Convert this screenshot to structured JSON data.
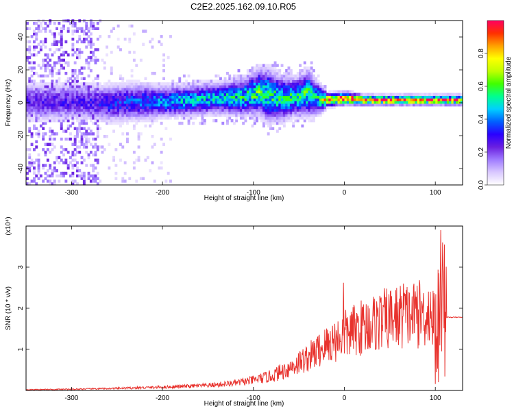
{
  "page": {
    "title": "C2E2.2025.162.09.10.R05"
  },
  "colors": {
    "snr_line": "#e8322d",
    "spectrum_dark": "#6a1fe0",
    "spectrum_ridge_high": "#ff2050",
    "spectrum_ridge_mid": "#30d080"
  },
  "chart_data": [
    {
      "type": "heatmap",
      "title": "C2E2.2025.162.09.10.R05",
      "xlabel": "Height of straight line (km)",
      "ylabel": "Frequency (Hz)",
      "xlim": [
        -350,
        130
      ],
      "ylim": [
        -50,
        50
      ],
      "x_ticks": [
        -300,
        -200,
        -100,
        0,
        100
      ],
      "x_tick_labels": [
        "-300",
        "-200",
        "-100",
        "0",
        "100"
      ],
      "y_ticks": [
        -40,
        -20,
        0,
        20,
        40
      ],
      "y_tick_labels": [
        "-40",
        "-20",
        "0",
        "20",
        "40"
      ],
      "colorbar": {
        "label": "Normalized spectral amplitude",
        "range": [
          0,
          1
        ],
        "ticks": [
          0.0,
          0.2,
          0.4,
          0.6,
          0.8
        ],
        "tick_labels": [
          "0.0",
          "0.2",
          "0.4",
          "0.6",
          "0.8"
        ],
        "colormap": [
          "#ffffff",
          "#d9c8ff",
          "#a07cff",
          "#6a1fe0",
          "#2a00ff",
          "#0060ff",
          "#00d0ff",
          "#00ff90",
          "#40ff00",
          "#c0ff00",
          "#ffff00",
          "#ffa000",
          "#ff3000",
          "#ff0060"
        ]
      },
      "ridge": {
        "x": [
          -290,
          -260,
          -230,
          -200,
          -170,
          -140,
          -110,
          -95,
          -85,
          -70,
          -55,
          -40,
          -30,
          -20,
          0,
          20,
          50,
          80,
          100,
          130
        ],
        "frequency": [
          0,
          -1,
          0,
          0,
          1,
          2,
          3,
          6,
          4,
          2,
          3,
          5,
          2,
          1,
          2,
          1,
          1,
          1,
          1,
          1
        ],
        "spread": [
          6,
          6,
          6,
          5,
          5,
          5,
          6,
          7,
          8,
          7,
          6,
          7,
          5,
          2,
          2,
          1.5,
          1.5,
          1.5,
          1.5,
          1.5
        ],
        "peak_amplitude": [
          0.25,
          0.3,
          0.35,
          0.4,
          0.45,
          0.45,
          0.5,
          0.55,
          0.55,
          0.5,
          0.5,
          0.55,
          0.5,
          0.9,
          0.95,
          0.95,
          0.95,
          0.95,
          0.95,
          0.9
        ]
      }
    },
    {
      "type": "line",
      "xlabel": "Height of straight line (km)",
      "ylabel": "SNR (10 * v/v)",
      "y_scale_label": "(x10⁴)",
      "xlim": [
        -350,
        130
      ],
      "ylim": [
        0,
        4
      ],
      "x_ticks": [
        -300,
        -200,
        -100,
        0,
        100
      ],
      "x_tick_labels": [
        "-300",
        "-200",
        "-100",
        "0",
        "100"
      ],
      "y_ticks": [
        1,
        2,
        3
      ],
      "y_tick_labels": [
        "1",
        "2",
        "3"
      ],
      "envelope": {
        "x": [
          -350,
          -300,
          -250,
          -200,
          -150,
          -120,
          -100,
          -80,
          -60,
          -40,
          -20,
          0,
          20,
          40,
          60,
          80,
          95,
          100,
          105,
          110,
          130
        ],
        "value": [
          0.02,
          0.03,
          0.05,
          0.08,
          0.12,
          0.18,
          0.25,
          0.35,
          0.55,
          0.8,
          1.1,
          1.35,
          1.55,
          1.7,
          1.8,
          1.85,
          1.9,
          1.6,
          1.2,
          1.78,
          1.78
        ]
      },
      "spikes": [
        {
          "x": -1,
          "y": 2.62
        },
        {
          "x": 65,
          "y": 2.6
        },
        {
          "x": 80,
          "y": 2.55
        },
        {
          "x": 104,
          "y": 2.85
        },
        {
          "x": 106,
          "y": 3.9
        },
        {
          "x": 108,
          "y": 3.6
        },
        {
          "x": 110,
          "y": 3.55
        }
      ]
    }
  ]
}
